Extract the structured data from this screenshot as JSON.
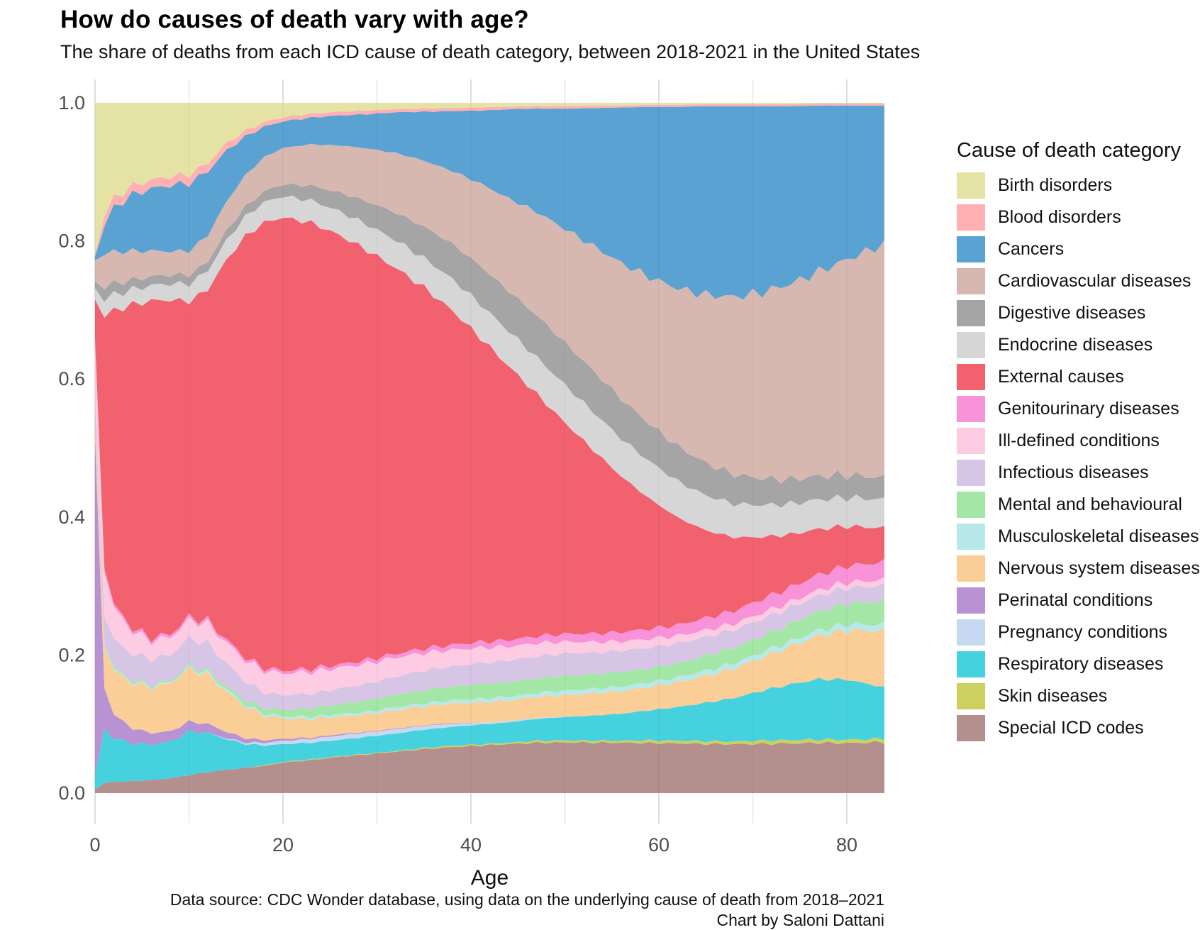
{
  "title": "How do causes of death vary with age?",
  "subtitle": "The share of deaths from each ICD cause of death category, between 2018-2021 in the United States",
  "caption_line1": "Data source: CDC Wonder database, using data on the underlying cause of death from 2018–2021",
  "caption_line2": "Chart by Saloni Dattani",
  "legend_title": "Cause of death category",
  "x_axis": {
    "label": "Age",
    "ticks": [
      0,
      20,
      40,
      60,
      80
    ]
  },
  "y_axis": {
    "ticks": [
      "0.0",
      "0.2",
      "0.4",
      "0.6",
      "0.8",
      "1.0"
    ]
  },
  "chart_data": {
    "type": "area",
    "stacked": true,
    "normalized_share": true,
    "title": "How do causes of death vary with age?",
    "xlabel": "Age",
    "ylabel": "",
    "xlim": [
      0,
      84
    ],
    "ylim": [
      0,
      1
    ],
    "grid": "vertical-only",
    "legend_position": "right",
    "stack_order_top_to_bottom": "alphabetical (Birth disorders on top, Special ICD codes at bottom)",
    "x": [
      0,
      1,
      2,
      4,
      6,
      8,
      10,
      12,
      14,
      16,
      18,
      20,
      23,
      26,
      29,
      32,
      35,
      38,
      41,
      44,
      47,
      50,
      53,
      56,
      59,
      62,
      65,
      68,
      71,
      74,
      77,
      80,
      84
    ],
    "series": [
      {
        "name": "Birth disorders",
        "color": "#e5e3a4",
        "values": [
          0.21,
          0.135,
          0.12,
          0.11,
          0.105,
          0.1,
          0.095,
          0.08,
          0.055,
          0.04,
          0.028,
          0.022,
          0.017,
          0.014,
          0.012,
          0.01,
          0.009,
          0.008,
          0.007,
          0.006,
          0.005,
          0.005,
          0.004,
          0.004,
          0.003,
          0.003,
          0.002,
          0.002,
          0.002,
          0.002,
          0.001,
          0.001,
          0.001
        ]
      },
      {
        "name": "Blood disorders",
        "color": "#ffb0b3",
        "values": [
          0.004,
          0.012,
          0.012,
          0.012,
          0.012,
          0.012,
          0.012,
          0.011,
          0.01,
          0.008,
          0.007,
          0.006,
          0.006,
          0.006,
          0.006,
          0.005,
          0.005,
          0.005,
          0.005,
          0.004,
          0.004,
          0.004,
          0.004,
          0.003,
          0.003,
          0.003,
          0.003,
          0.003,
          0.003,
          0.003,
          0.003,
          0.003,
          0.003
        ]
      },
      {
        "name": "Cancers",
        "color": "#5aa2d2",
        "values": [
          0.005,
          0.035,
          0.055,
          0.075,
          0.085,
          0.09,
          0.09,
          0.085,
          0.07,
          0.055,
          0.045,
          0.04,
          0.042,
          0.048,
          0.055,
          0.065,
          0.078,
          0.095,
          0.115,
          0.14,
          0.16,
          0.185,
          0.21,
          0.235,
          0.255,
          0.27,
          0.28,
          0.285,
          0.28,
          0.268,
          0.248,
          0.225,
          0.195
        ]
      },
      {
        "name": "Cardiovascular diseases",
        "color": "#d7b8b0",
        "values": [
          0.03,
          0.04,
          0.04,
          0.038,
          0.035,
          0.032,
          0.032,
          0.035,
          0.04,
          0.045,
          0.05,
          0.055,
          0.065,
          0.075,
          0.085,
          0.095,
          0.105,
          0.115,
          0.13,
          0.145,
          0.16,
          0.175,
          0.19,
          0.205,
          0.22,
          0.235,
          0.25,
          0.265,
          0.28,
          0.295,
          0.305,
          0.315,
          0.33
        ]
      },
      {
        "name": "Digestive diseases",
        "color": "#a5a5a5",
        "values": [
          0.01,
          0.015,
          0.014,
          0.013,
          0.012,
          0.012,
          0.012,
          0.012,
          0.013,
          0.014,
          0.016,
          0.018,
          0.023,
          0.03,
          0.037,
          0.044,
          0.05,
          0.056,
          0.06,
          0.063,
          0.065,
          0.065,
          0.063,
          0.06,
          0.056,
          0.052,
          0.048,
          0.044,
          0.04,
          0.037,
          0.035,
          0.033,
          0.031
        ]
      },
      {
        "name": "Endocrine diseases",
        "color": "#d6d6d6",
        "values": [
          0.015,
          0.02,
          0.02,
          0.02,
          0.021,
          0.022,
          0.023,
          0.025,
          0.027,
          0.028,
          0.03,
          0.032,
          0.035,
          0.038,
          0.041,
          0.044,
          0.047,
          0.05,
          0.053,
          0.055,
          0.057,
          0.058,
          0.058,
          0.057,
          0.056,
          0.054,
          0.052,
          0.05,
          0.048,
          0.046,
          0.044,
          0.042,
          0.04
        ]
      },
      {
        "name": "External causes",
        "color": "#f2616e",
        "values": [
          0.055,
          0.3,
          0.37,
          0.43,
          0.46,
          0.455,
          0.42,
          0.44,
          0.52,
          0.6,
          0.655,
          0.685,
          0.7,
          0.685,
          0.655,
          0.615,
          0.575,
          0.53,
          0.48,
          0.43,
          0.375,
          0.325,
          0.28,
          0.235,
          0.195,
          0.16,
          0.13,
          0.11,
          0.093,
          0.08,
          0.068,
          0.058,
          0.048
        ]
      },
      {
        "name": "Genitourinary diseases",
        "color": "#f893da",
        "values": [
          0.003,
          0.004,
          0.004,
          0.004,
          0.004,
          0.004,
          0.004,
          0.004,
          0.004,
          0.004,
          0.004,
          0.004,
          0.005,
          0.005,
          0.006,
          0.006,
          0.007,
          0.008,
          0.009,
          0.01,
          0.011,
          0.012,
          0.013,
          0.014,
          0.015,
          0.016,
          0.018,
          0.019,
          0.021,
          0.022,
          0.023,
          0.024,
          0.025
        ]
      },
      {
        "name": "Ill-defined conditions",
        "color": "#fdcce2",
        "values": [
          0.085,
          0.055,
          0.04,
          0.03,
          0.025,
          0.024,
          0.024,
          0.026,
          0.028,
          0.03,
          0.032,
          0.033,
          0.034,
          0.033,
          0.032,
          0.03,
          0.028,
          0.026,
          0.024,
          0.022,
          0.02,
          0.018,
          0.016,
          0.014,
          0.013,
          0.011,
          0.01,
          0.009,
          0.009,
          0.008,
          0.008,
          0.008,
          0.008
        ]
      },
      {
        "name": "Infectious diseases",
        "color": "#d7c5e6",
        "values": [
          0.025,
          0.035,
          0.035,
          0.035,
          0.035,
          0.035,
          0.036,
          0.036,
          0.032,
          0.027,
          0.023,
          0.022,
          0.023,
          0.025,
          0.027,
          0.029,
          0.031,
          0.032,
          0.033,
          0.034,
          0.034,
          0.034,
          0.033,
          0.032,
          0.031,
          0.03,
          0.028,
          0.027,
          0.026,
          0.025,
          0.024,
          0.023,
          0.022
        ]
      },
      {
        "name": "Mental and behavioural",
        "color": "#a3e6a6",
        "values": [
          0.002,
          0.002,
          0.002,
          0.002,
          0.002,
          0.002,
          0.003,
          0.003,
          0.004,
          0.006,
          0.008,
          0.01,
          0.013,
          0.016,
          0.018,
          0.02,
          0.021,
          0.022,
          0.023,
          0.023,
          0.023,
          0.023,
          0.022,
          0.022,
          0.021,
          0.021,
          0.022,
          0.023,
          0.024,
          0.026,
          0.028,
          0.03,
          0.033
        ]
      },
      {
        "name": "Musculoskeletal diseases",
        "color": "#b7e9e9",
        "values": [
          0.001,
          0.002,
          0.002,
          0.002,
          0.002,
          0.002,
          0.002,
          0.003,
          0.003,
          0.003,
          0.003,
          0.003,
          0.004,
          0.004,
          0.004,
          0.005,
          0.005,
          0.005,
          0.006,
          0.006,
          0.006,
          0.007,
          0.007,
          0.007,
          0.007,
          0.007,
          0.008,
          0.008,
          0.008,
          0.008,
          0.008,
          0.009,
          0.009
        ]
      },
      {
        "name": "Nervous system diseases",
        "color": "#fbcd97",
        "values": [
          0.02,
          0.05,
          0.055,
          0.06,
          0.062,
          0.065,
          0.07,
          0.065,
          0.055,
          0.045,
          0.036,
          0.031,
          0.029,
          0.028,
          0.028,
          0.029,
          0.03,
          0.031,
          0.032,
          0.032,
          0.033,
          0.033,
          0.034,
          0.034,
          0.035,
          0.037,
          0.04,
          0.044,
          0.05,
          0.057,
          0.065,
          0.072,
          0.08
        ]
      },
      {
        "name": "Perinatal conditions",
        "color": "#b992d3",
        "values": [
          0.47,
          0.05,
          0.03,
          0.02,
          0.016,
          0.014,
          0.013,
          0.012,
          0.009,
          0.006,
          0.004,
          0.003,
          0.002,
          0.002,
          0.001,
          0.001,
          0.001,
          0.001,
          0,
          0,
          0,
          0,
          0,
          0,
          0,
          0,
          0,
          0,
          0,
          0,
          0,
          0,
          0
        ]
      },
      {
        "name": "Pregnancy conditions",
        "color": "#c6d9f0",
        "values": [
          0,
          0,
          0,
          0,
          0,
          0,
          0,
          0,
          0.001,
          0.002,
          0.004,
          0.005,
          0.006,
          0.007,
          0.007,
          0.007,
          0.006,
          0.005,
          0.003,
          0.002,
          0.001,
          0.001,
          0,
          0,
          0,
          0,
          0,
          0,
          0,
          0,
          0,
          0,
          0
        ]
      },
      {
        "name": "Respiratory diseases",
        "color": "#45d2de",
        "values": [
          0.02,
          0.065,
          0.055,
          0.05,
          0.048,
          0.05,
          0.058,
          0.052,
          0.042,
          0.034,
          0.029,
          0.027,
          0.026,
          0.026,
          0.027,
          0.028,
          0.029,
          0.03,
          0.031,
          0.032,
          0.034,
          0.036,
          0.038,
          0.041,
          0.045,
          0.05,
          0.057,
          0.065,
          0.075,
          0.084,
          0.09,
          0.088,
          0.072
        ]
      },
      {
        "name": "Skin diseases",
        "color": "#ccd05e",
        "values": [
          0,
          0,
          0,
          0,
          0,
          0,
          0,
          0,
          0,
          0,
          0.001,
          0.001,
          0.001,
          0.001,
          0.001,
          0.001,
          0.002,
          0.002,
          0.002,
          0.002,
          0.003,
          0.003,
          0.003,
          0.003,
          0.004,
          0.004,
          0.004,
          0.004,
          0.005,
          0.005,
          0.005,
          0.005,
          0.005
        ]
      },
      {
        "name": "Special ICD codes",
        "color": "#b3908e",
        "values": [
          0.005,
          0.012,
          0.014,
          0.016,
          0.018,
          0.02,
          0.024,
          0.028,
          0.032,
          0.036,
          0.04,
          0.046,
          0.052,
          0.058,
          0.062,
          0.066,
          0.07,
          0.073,
          0.075,
          0.077,
          0.078,
          0.078,
          0.077,
          0.076,
          0.075,
          0.074,
          0.073,
          0.073,
          0.074,
          0.075,
          0.075,
          0.073,
          0.072
        ]
      }
    ]
  }
}
